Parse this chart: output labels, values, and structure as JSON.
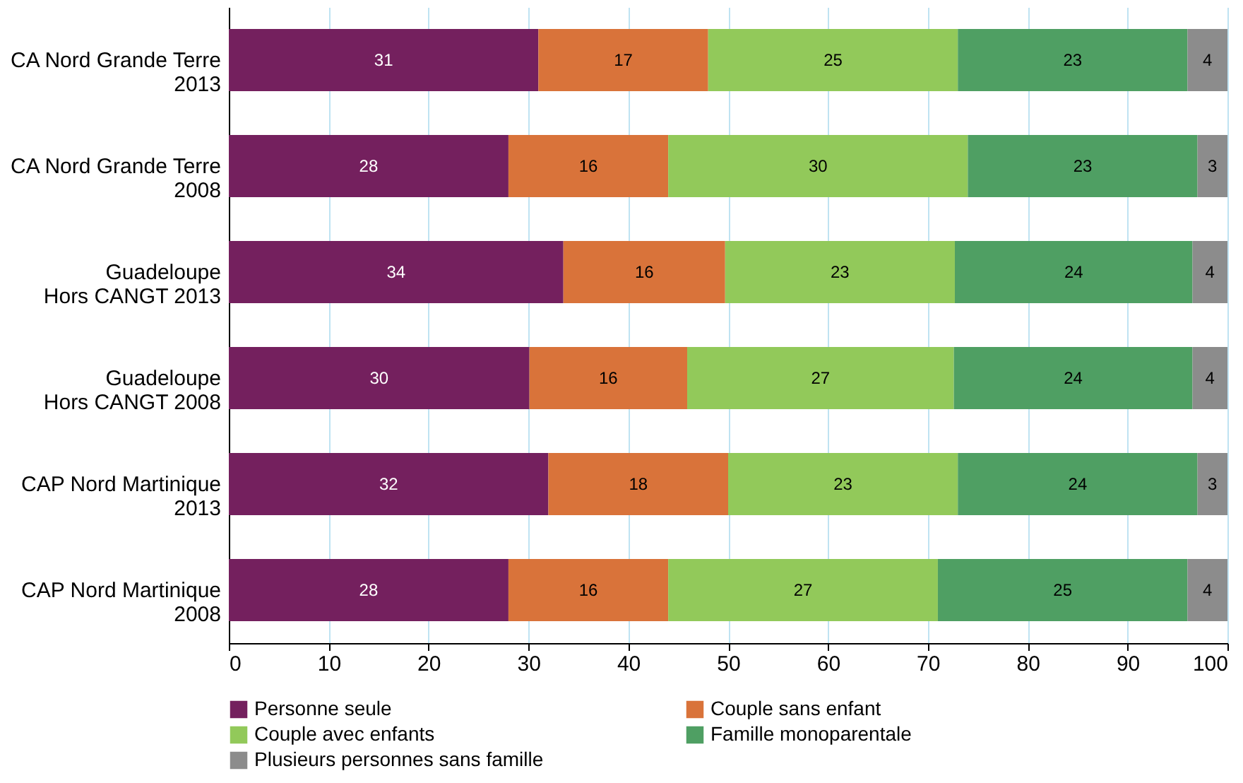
{
  "chart_data": {
    "type": "bar",
    "orientation": "horizontal",
    "stacked": true,
    "grid": "x",
    "legend": "bottom",
    "categories": [
      "CA Nord Grande Terre\n2013",
      "CA Nord Grande Terre\n2008",
      "Guadeloupe\nHors CANGT 2013",
      "Guadeloupe\nHors CANGT 2008",
      "CAP Nord Martinique\n2013",
      "CAP Nord Martinique\n2008"
    ],
    "xlim": [
      0,
      100
    ],
    "xticks": [
      0,
      10,
      20,
      30,
      40,
      50,
      60,
      70,
      80,
      90,
      100
    ],
    "series": [
      {
        "name": "Personne seule",
        "color": "#74205e",
        "values": [
          31,
          28,
          33.5,
          30.1,
          32,
          28
        ],
        "value_labels": [
          "31",
          "28",
          "34",
          "30",
          "32",
          "28"
        ]
      },
      {
        "name": "Couple sans enfant",
        "color": "#d9733a",
        "values": [
          17,
          16,
          16.2,
          15.8,
          18,
          16
        ],
        "value_labels": [
          "17",
          "16",
          "16",
          "16",
          "18",
          "16"
        ]
      },
      {
        "name": "Couple avec enfants",
        "color": "#92c95a",
        "values": [
          25,
          30,
          23,
          26.7,
          23,
          27
        ],
        "value_labels": [
          "25",
          "30",
          "23",
          "27",
          "23",
          "27"
        ]
      },
      {
        "name": "Famille monoparentale",
        "color": "#4f9f63",
        "values": [
          23,
          23,
          23.8,
          23.9,
          24,
          25
        ],
        "value_labels": [
          "23",
          "23",
          "24",
          "24",
          "24",
          "25"
        ]
      },
      {
        "name": "Plusieurs personnes sans famille",
        "color": "#8c8c8c",
        "values": [
          4,
          3,
          3.5,
          3.5,
          3,
          4
        ],
        "value_labels": [
          "4",
          "3",
          "4",
          "4",
          "3",
          "4"
        ]
      }
    ]
  }
}
